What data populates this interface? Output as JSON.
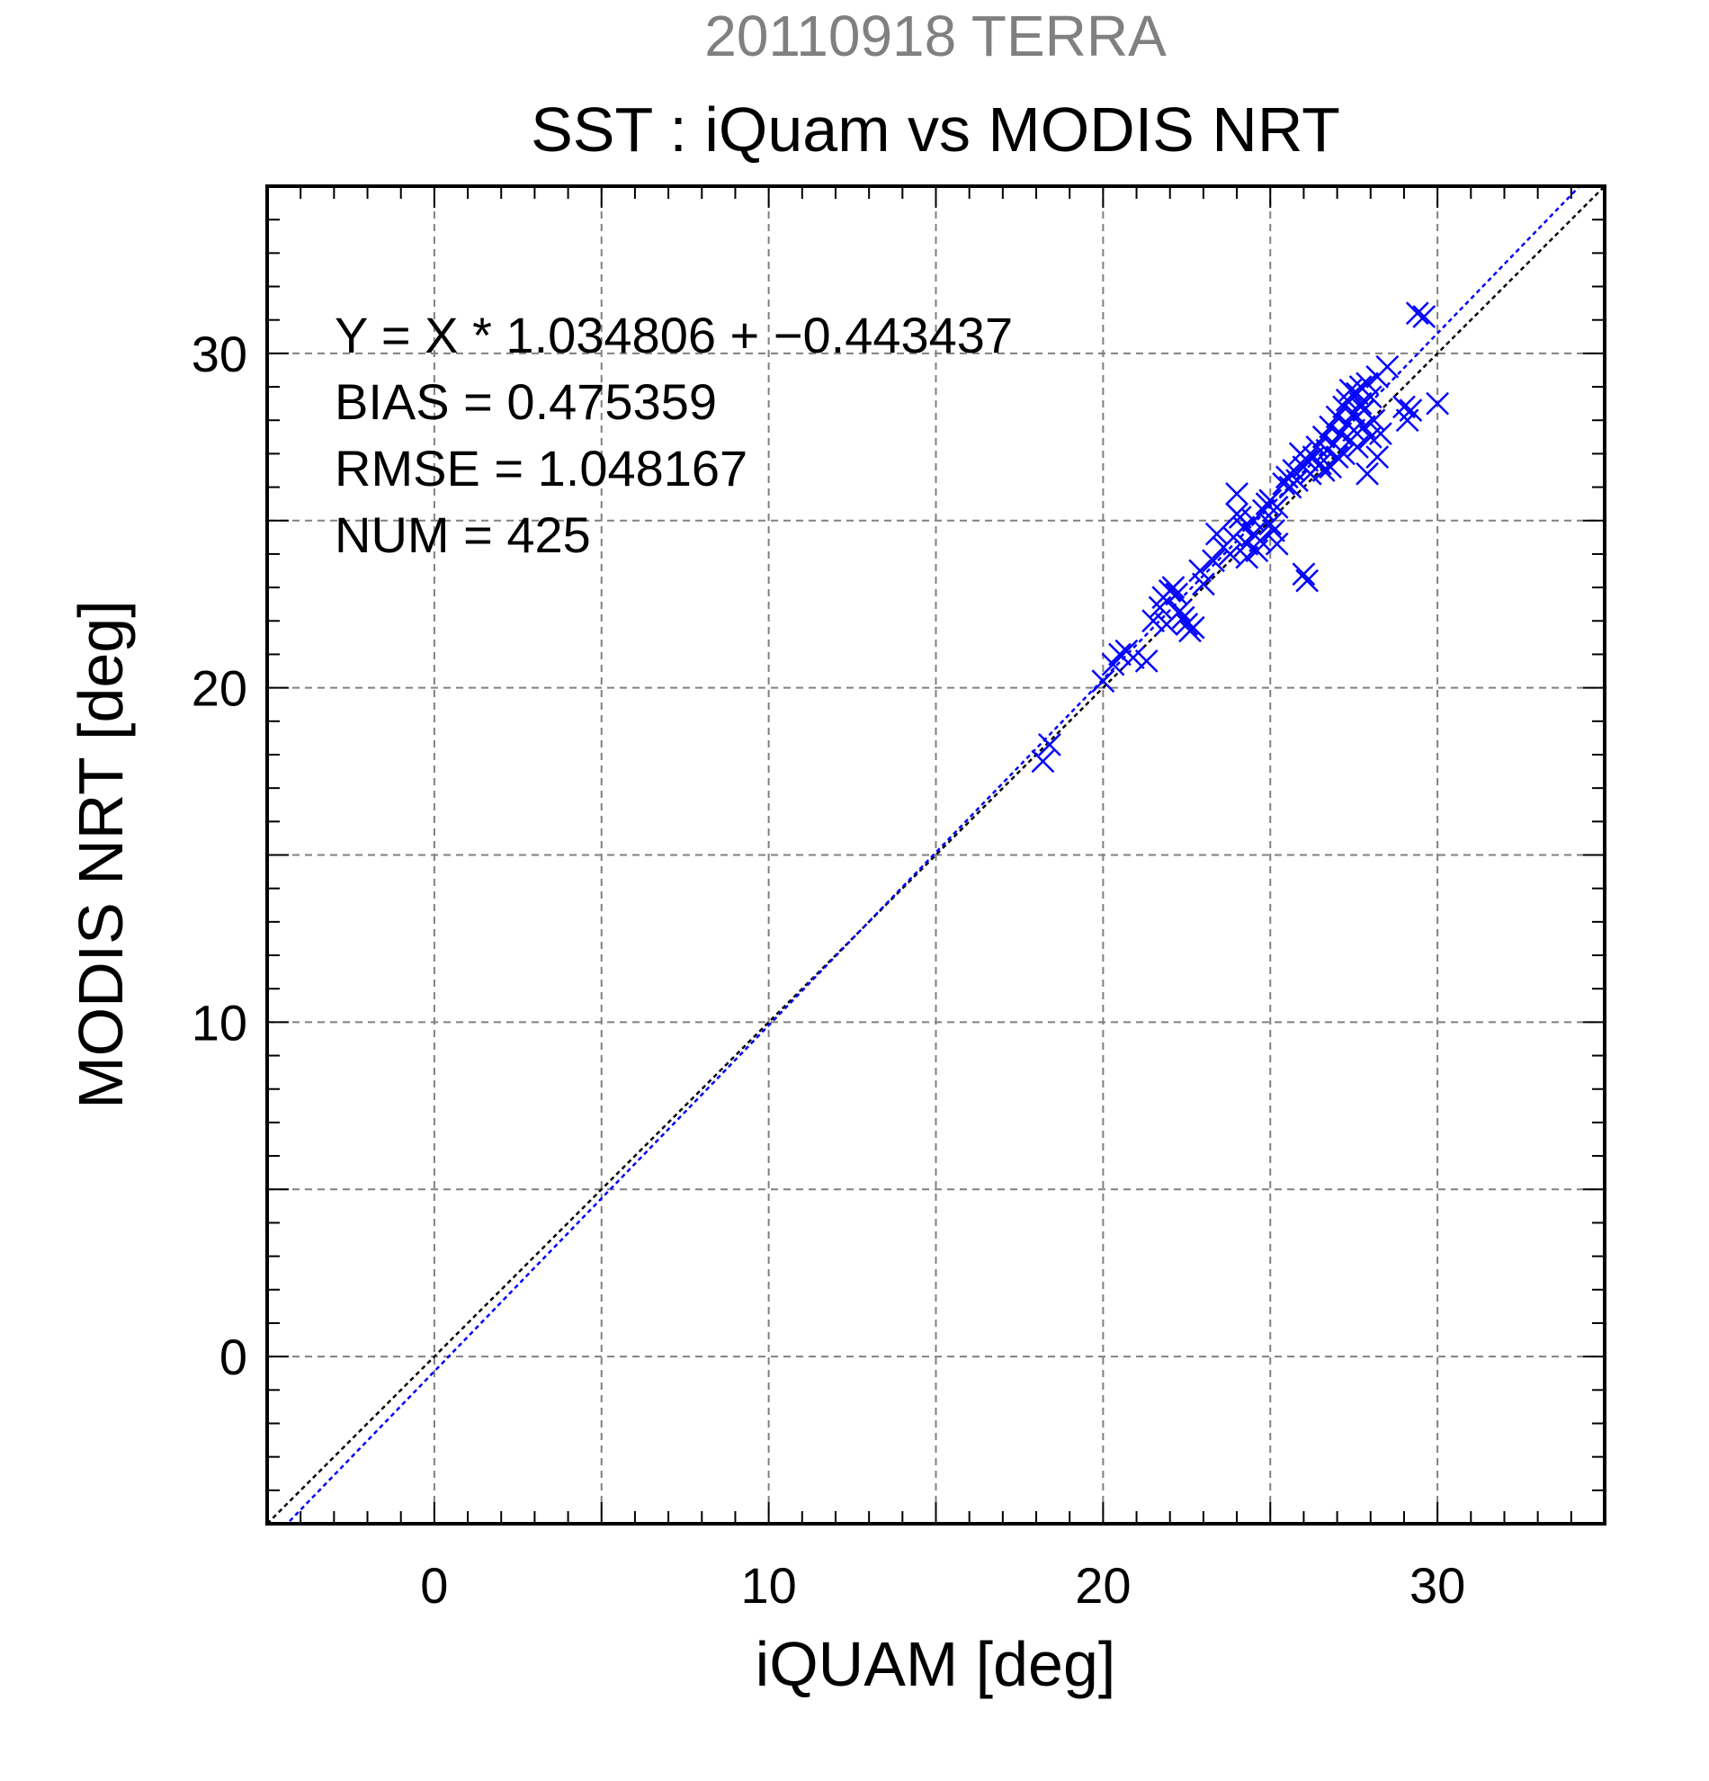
{
  "header": {
    "date_label": "20110918 TERRA",
    "title": "SST : iQuam vs MODIS NRT"
  },
  "colors": {
    "series": "#0000ff",
    "identity_line": "#000000",
    "header_gray": "#808080",
    "grid": "#808080"
  },
  "chart_data": {
    "type": "scatter",
    "title": "SST : iQuam vs MODIS NRT",
    "subtitle": "20110918 TERRA",
    "xlabel": "iQUAM [deg]",
    "ylabel": "MODIS NRT [deg]",
    "xlim": [
      -5,
      35
    ],
    "ylim": [
      -5,
      35
    ],
    "xticks": [
      0,
      10,
      20,
      30
    ],
    "yticks": [
      0,
      10,
      20,
      30
    ],
    "x_grid_step": 5,
    "y_grid_step": 5,
    "grid": true,
    "marker": "x",
    "stats": [
      "Y = X * 1.034806 + −0.443437",
      "BIAS = 0.475359",
      "RMSE = 1.048167",
      "NUM = 425"
    ],
    "fit": {
      "slope": 1.034806,
      "intercept": -0.443437
    },
    "identity_line": {
      "slope": 1,
      "intercept": 0
    },
    "points": [
      [
        18.2,
        17.8
      ],
      [
        18.4,
        18.3
      ],
      [
        20.0,
        20.2
      ],
      [
        20.3,
        20.7
      ],
      [
        20.5,
        21.0
      ],
      [
        20.7,
        21.1
      ],
      [
        20.9,
        20.9
      ],
      [
        21.3,
        20.8
      ],
      [
        21.5,
        22.0
      ],
      [
        21.7,
        22.4
      ],
      [
        21.8,
        22.7
      ],
      [
        21.9,
        21.9
      ],
      [
        22.0,
        22.9
      ],
      [
        22.1,
        23.0
      ],
      [
        22.2,
        22.8
      ],
      [
        22.3,
        22.3
      ],
      [
        22.4,
        22.1
      ],
      [
        22.5,
        21.9
      ],
      [
        22.6,
        21.7
      ],
      [
        22.7,
        21.8
      ],
      [
        22.9,
        23.5
      ],
      [
        23.0,
        23.1
      ],
      [
        23.3,
        23.8
      ],
      [
        23.4,
        24.6
      ],
      [
        23.6,
        24.2
      ],
      [
        23.8,
        24.0
      ],
      [
        23.9,
        24.5
      ],
      [
        24.0,
        25.8
      ],
      [
        24.0,
        25.2
      ],
      [
        24.1,
        25.1
      ],
      [
        24.2,
        24.8
      ],
      [
        24.3,
        24.3
      ],
      [
        24.3,
        23.9
      ],
      [
        24.5,
        24.6
      ],
      [
        24.5,
        25.0
      ],
      [
        24.6,
        24.1
      ],
      [
        24.7,
        24.4
      ],
      [
        24.8,
        25.3
      ],
      [
        24.9,
        25.5
      ],
      [
        25.0,
        24.9
      ],
      [
        25.0,
        25.6
      ],
      [
        25.1,
        24.7
      ],
      [
        25.2,
        25.4
      ],
      [
        25.2,
        24.3
      ],
      [
        25.4,
        26.1
      ],
      [
        25.5,
        26.3
      ],
      [
        25.6,
        26.0
      ],
      [
        25.7,
        26.5
      ],
      [
        25.8,
        26.2
      ],
      [
        25.9,
        27.0
      ],
      [
        26.0,
        23.4
      ],
      [
        26.1,
        23.2
      ],
      [
        26.0,
        26.6
      ],
      [
        26.1,
        26.8
      ],
      [
        26.2,
        26.4
      ],
      [
        26.3,
        26.9
      ],
      [
        26.4,
        27.2
      ],
      [
        26.5,
        26.7
      ],
      [
        26.6,
        26.5
      ],
      [
        26.6,
        27.5
      ],
      [
        26.7,
        27.1
      ],
      [
        26.8,
        26.6
      ],
      [
        26.8,
        27.8
      ],
      [
        26.9,
        27.3
      ],
      [
        27.0,
        28.1
      ],
      [
        27.0,
        26.9
      ],
      [
        27.1,
        27.6
      ],
      [
        27.2,
        28.4
      ],
      [
        27.2,
        27.0
      ],
      [
        27.3,
        27.9
      ],
      [
        27.3,
        28.6
      ],
      [
        27.4,
        27.4
      ],
      [
        27.4,
        28.9
      ],
      [
        27.5,
        28.2
      ],
      [
        27.5,
        27.7
      ],
      [
        27.6,
        28.8
      ],
      [
        27.6,
        27.2
      ],
      [
        27.7,
        28.5
      ],
      [
        27.7,
        29.0
      ],
      [
        27.8,
        27.8
      ],
      [
        27.8,
        28.3
      ],
      [
        27.9,
        29.1
      ],
      [
        27.9,
        26.4
      ],
      [
        28.0,
        28.7
      ],
      [
        28.0,
        27.5
      ],
      [
        28.1,
        28.0
      ],
      [
        28.2,
        29.3
      ],
      [
        28.2,
        26.9
      ],
      [
        28.3,
        27.6
      ],
      [
        28.5,
        29.6
      ],
      [
        29.0,
        28.4
      ],
      [
        29.1,
        28.0
      ],
      [
        29.2,
        28.3
      ],
      [
        29.4,
        31.2
      ],
      [
        29.6,
        31.1
      ],
      [
        30.0,
        28.5
      ]
    ]
  }
}
